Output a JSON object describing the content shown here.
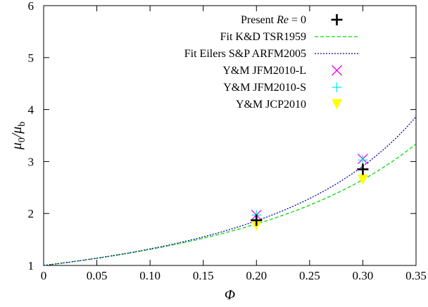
{
  "chart_data": {
    "type": "scatter",
    "xlabel": "Φ",
    "ylabel": "μ0/μb",
    "xlim": [
      0,
      0.35
    ],
    "ylim": [
      1,
      6
    ],
    "xticks": [
      "0",
      "0.05",
      "0.10",
      "0.15",
      "0.20",
      "0.25",
      "0.30",
      "0.35"
    ],
    "yticks": [
      "1",
      "2",
      "3",
      "4",
      "5",
      "6"
    ],
    "grid": false,
    "legend_position": "top-right",
    "series": [
      {
        "name": "Present Re = 0",
        "legend": {
          "prefix": "Present ",
          "var": "Re",
          "suffix": " = 0"
        },
        "kind": "points",
        "marker": "plus",
        "color": "#000000",
        "x": [
          0.2,
          0.3
        ],
        "y": [
          1.87,
          2.85
        ]
      },
      {
        "name": "Fit K&D TSR1959",
        "kind": "curve",
        "model": "krieger-dougherty",
        "phi_max": 0.71,
        "intrinsic": 2.5,
        "color": "#00dd00",
        "dash": "5,3",
        "x_range": [
          0,
          0.35
        ]
      },
      {
        "name": "Fit Eilers S&P ARFM2005",
        "kind": "curve",
        "model": "eilers",
        "phi_max": 0.64,
        "intrinsic": 2.5,
        "color": "#0000aa",
        "dash": "2,2",
        "x_range": [
          0,
          0.35
        ]
      },
      {
        "name": "Y&M JFM2010-L",
        "kind": "points",
        "marker": "cross",
        "color": "#ee00ee",
        "x": [
          0.2,
          0.3
        ],
        "y": [
          1.97,
          3.05
        ]
      },
      {
        "name": "Y&M JFM2010-S",
        "kind": "points",
        "marker": "plus",
        "color": "#00e5e5",
        "x": [
          0.2,
          0.3
        ],
        "y": [
          1.97,
          3.03
        ]
      },
      {
        "name": "Y&M JCP2010",
        "kind": "points",
        "marker": "triangle-down",
        "color": "#ffff00",
        "x": [
          0.2,
          0.3
        ],
        "y": [
          1.77,
          2.65
        ]
      }
    ]
  }
}
